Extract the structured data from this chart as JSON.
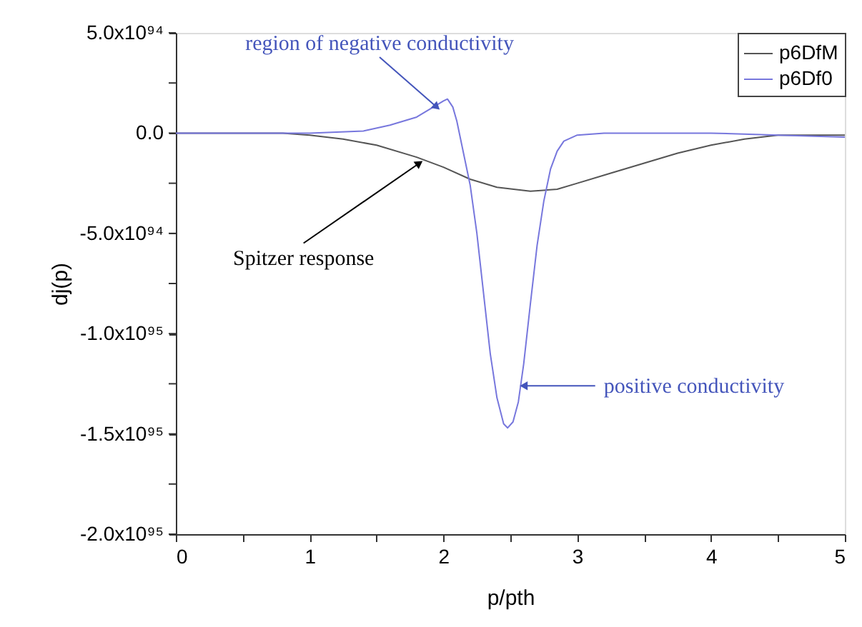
{
  "chart_data": {
    "type": "line",
    "xlabel": "p/pth",
    "ylabel": "dj(p)",
    "xlim": [
      0,
      5
    ],
    "ylim": [
      -2e+95,
      5e+94
    ],
    "xticks": [
      0,
      {
        "value": 0.5,
        "label": null
      },
      1,
      {
        "value": 1.5,
        "label": null
      },
      2,
      {
        "value": 2.5,
        "label": null
      },
      3,
      {
        "value": 3.5,
        "label": null
      },
      4,
      {
        "value": 4.5,
        "label": null
      },
      5
    ],
    "yticks": [
      {
        "value": 5e+94,
        "label": "5.0x10⁹⁴"
      },
      {
        "value": 2.5e+94,
        "label": null
      },
      {
        "value": 0,
        "label": "0.0"
      },
      {
        "value": -2.5e+94,
        "label": null
      },
      {
        "value": -5e+94,
        "label": "-5.0x10⁹⁴"
      },
      {
        "value": -7.5e+94,
        "label": null
      },
      {
        "value": -1e+95,
        "label": "-1.0x10⁹⁵"
      },
      {
        "value": -1.25e+95,
        "label": null
      },
      {
        "value": -1.5e+95,
        "label": "-1.5x10⁹⁵"
      },
      {
        "value": -1.75e+95,
        "label": null
      },
      {
        "value": -2e+95,
        "label": "-2.0x10⁹⁵"
      }
    ],
    "grid": false,
    "legend": "top right",
    "marker": "none",
    "line_style": "solid",
    "series": [
      {
        "name": "p6DfM",
        "color": "#555555",
        "x": [
          0,
          0.8,
          1.0,
          1.25,
          1.5,
          1.8,
          2.0,
          2.2,
          2.4,
          2.65,
          2.85,
          3.0,
          3.25,
          3.5,
          3.75,
          4.0,
          4.25,
          4.5,
          5.0
        ],
        "values": [
          0,
          0,
          -1e+93,
          -3e+93,
          -6e+93,
          -1.2e+94,
          -1.7e+94,
          -2.3e+94,
          -2.7e+94,
          -2.9e+94,
          -2.8e+94,
          -2.5e+94,
          -2e+94,
          -1.5e+94,
          -1e+94,
          -6e+93,
          -3e+93,
          -1e+93,
          -1e+93
        ]
      },
      {
        "name": "p6Df0",
        "color": "#7777dd",
        "x": [
          0,
          1.0,
          1.4,
          1.6,
          1.8,
          1.9,
          2.0,
          2.03,
          2.07,
          2.1,
          2.15,
          2.2,
          2.25,
          2.3,
          2.35,
          2.4,
          2.45,
          2.48,
          2.52,
          2.56,
          2.6,
          2.65,
          2.7,
          2.75,
          2.8,
          2.85,
          2.9,
          3.0,
          3.2,
          4.0,
          4.5,
          5.0
        ],
        "values": [
          0,
          0,
          1e+93,
          4e+93,
          8e+93,
          1.2e+94,
          1.6e+94,
          1.7e+94,
          1.3e+94,
          6e+93,
          -1e+94,
          -2.6e+94,
          -5e+94,
          -8e+94,
          -1.1e+95,
          -1.32e+95,
          -1.45e+95,
          -1.47e+95,
          -1.44e+95,
          -1.34e+95,
          -1.15e+95,
          -8.5e+94,
          -5.6e+94,
          -3.4e+94,
          -1.8e+94,
          -9e+93,
          -4e+93,
          -1e+93,
          0,
          0,
          -1e+93,
          -2e+93
        ]
      }
    ],
    "annotations": [
      {
        "text": "region of negative conductivity",
        "x": 1.95,
        "y": 1.3e+94
      },
      {
        "text": "Spitzer response",
        "x": 1.82,
        "y": -1.5e+94
      },
      {
        "text": "positive conductivity",
        "x": 2.6,
        "y": -1.26e+95
      }
    ]
  }
}
